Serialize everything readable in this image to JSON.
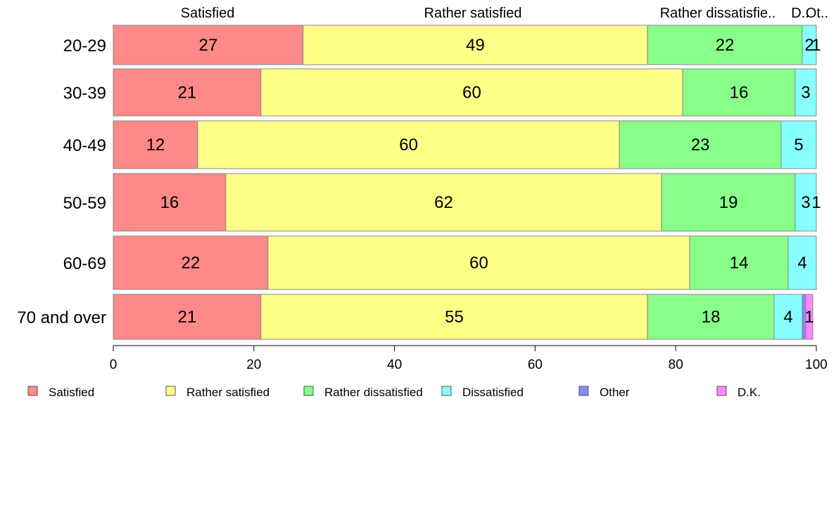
{
  "chart_data": {
    "type": "bar",
    "orientation": "horizontal",
    "stacked": true,
    "categories": [
      "20-29",
      "30-39",
      "40-49",
      "50-59",
      "60-69",
      "70 and over"
    ],
    "series": [
      {
        "name": "Satisfied",
        "color": "#ff8888",
        "values": [
          27,
          21,
          12,
          16,
          22,
          21
        ]
      },
      {
        "name": "Rather satisfied",
        "color": "#ffff88",
        "values": [
          49,
          60,
          60,
          62,
          60,
          55
        ]
      },
      {
        "name": "Rather dissatisfied",
        "color": "#88ff88",
        "values": [
          22,
          16,
          23,
          19,
          14,
          18
        ]
      },
      {
        "name": "Dissatisfied",
        "color": "#88ffff",
        "values": [
          2,
          3,
          5,
          3,
          4,
          4
        ]
      },
      {
        "name": "Other",
        "color": "#8888ff",
        "values": [
          1,
          0,
          0,
          0,
          0,
          0.5
        ]
      },
      {
        "name": "D.K.",
        "color": "#ff88ff",
        "values": [
          0,
          0.5,
          0,
          1,
          0.3,
          1
        ]
      }
    ],
    "segment_value_labels": [
      [
        "27",
        "49",
        "22",
        "2",
        "1",
        ""
      ],
      [
        "21",
        "60",
        "16",
        "3",
        "",
        ""
      ],
      [
        "12",
        "60",
        "23",
        "5",
        "",
        ""
      ],
      [
        "16",
        "62",
        "19",
        "3",
        "",
        "1"
      ],
      [
        "22",
        "60",
        "14",
        "4",
        "",
        ""
      ],
      [
        "21",
        "55",
        "18",
        "4",
        "",
        "1"
      ]
    ],
    "top_headers": [
      "Satisfied",
      "Rather satisfied",
      "Rather dissatisfie..",
      "D..",
      "Ot.."
    ],
    "xlim": [
      0,
      100
    ],
    "xticks": [
      "0",
      "20",
      "40",
      "60",
      "80",
      "100"
    ],
    "grid": false,
    "legend_position": "bottom"
  }
}
